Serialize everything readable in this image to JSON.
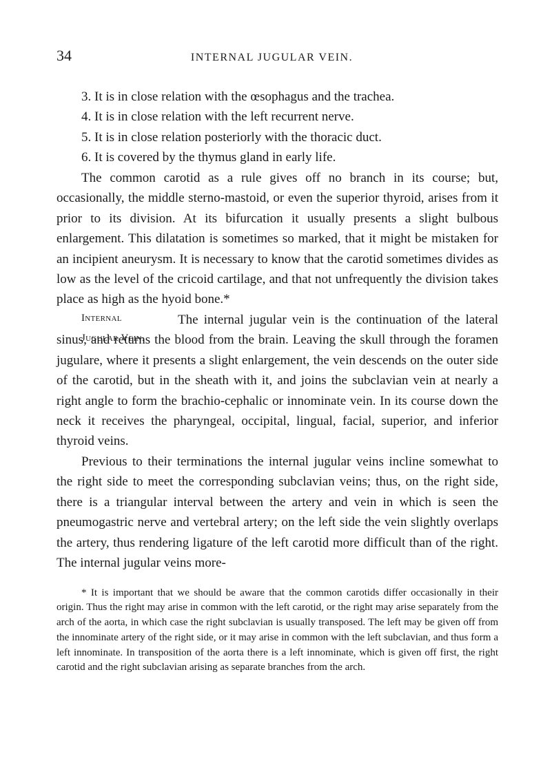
{
  "header": {
    "page_number": "34",
    "running_title": "INTERNAL JUGULAR VEIN."
  },
  "paragraphs": {
    "p1": "3. It is in close relation with the œsophagus and the trachea.",
    "p2": "4. It is in close relation with the left recurrent nerve.",
    "p3": "5. It is in close relation posteriorly with the thoracic duct.",
    "p4": "6. It is covered by the thymus gland in early life.",
    "p5": "The common carotid as a rule gives off no branch in its course; but, occasionally, the middle sterno-mastoid, or even the superior thyroid, arises from it prior to its division. At its bifurcation it usually presents a slight bulbous enlargement. This dilatation is sometimes so marked, that it might be mistaken for an incipient aneurysm. It is necessary to know that the carotid sometimes divides as low as the level of the cricoid cartilage, and that not unfrequently the division takes place as high as the hyoid bone.*",
    "p6": "The internal jugular vein is the continuation of the lateral sinus, and returns the blood from the brain. Leaving the skull through the foramen jugulare, where it presents a slight enlargement, the vein descends on the outer side of the carotid, but in the sheath with it, and joins the subclavian vein at nearly a right angle to form the brachio-cephalic or innominate vein. In its course down the neck it receives the pharyngeal, occipital, lingual, facial, superior, and inferior thyroid veins.",
    "p7": "Previous to their terminations the internal jugular veins incline somewhat to the right side to meet the corresponding subclavian veins; thus, on the right side, there is a triangular interval between the artery and vein in which is seen the pneumogastric nerve and vertebral artery; on the left side the vein slightly overlaps the artery, thus rendering ligature of the left carotid more difficult than of the right. The internal jugular veins more-"
  },
  "margin_labels": {
    "label1": "Internal",
    "label2": "Jugular Vein."
  },
  "footnote": "* It is important that we should be aware that the common carotids differ occasionally in their origin. Thus the right may arise in common with the left carotid, or the right may arise separately from the arch of the aorta, in which case the right subclavian is usually transposed. The left may be given off from the innominate artery of the right side, or it may arise in common with the left subclavian, and thus form a left innominate. In transposition of the aorta there is a left innominate, which is given off first, the right carotid and the right subclavian arising as separate branches from the arch."
}
